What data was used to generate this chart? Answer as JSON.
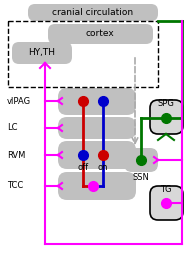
{
  "bg_color": "#ffffff",
  "fig_width": 1.93,
  "fig_height": 2.61,
  "labels": {
    "cranial_circulation": "cranial circulation",
    "cortex": "cortex",
    "hyth": "HY,TH",
    "vlpag": "vlPAG",
    "lc": "LC",
    "rvm": "RVM",
    "tcc": "TCC",
    "spg": "SPG",
    "ssn": "SSN",
    "tg": "TG",
    "off": "off",
    "on": "on"
  },
  "colors": {
    "gray_box": "#c0c0c0",
    "magenta": "#ff00ff",
    "dark_green": "#007700",
    "red": "#cc0000",
    "blue": "#0000cc",
    "arrow_gray": "#aaaaaa",
    "black": "#000000",
    "white": "#ffffff"
  }
}
